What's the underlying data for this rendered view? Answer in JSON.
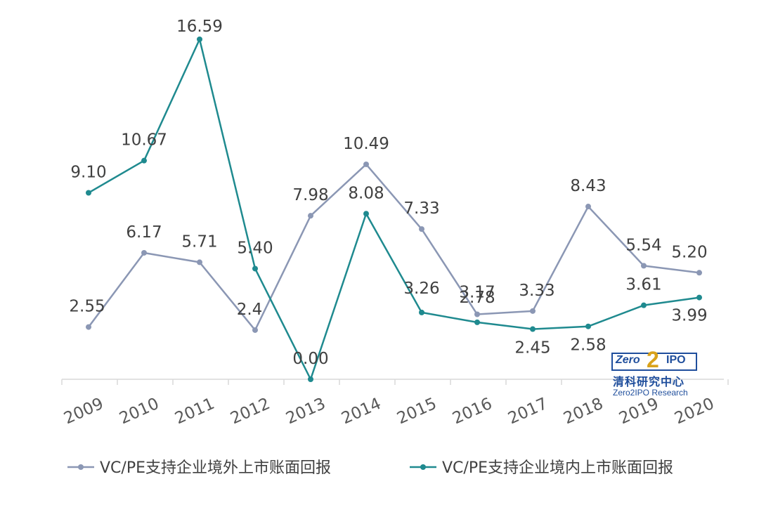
{
  "chart_data": {
    "type": "line",
    "x": [
      "2009",
      "2010",
      "2011",
      "2012",
      "2013",
      "2014",
      "2015",
      "2016",
      "2017",
      "2018",
      "2019",
      "2020"
    ],
    "series": [
      {
        "name": "VC/PE支持企业境外上市账面回报",
        "color": "#8b97b4",
        "values": [
          2.55,
          6.17,
          5.71,
          2.4,
          7.98,
          10.49,
          7.33,
          3.17,
          3.33,
          8.43,
          5.54,
          5.2
        ],
        "labels": [
          "2.55",
          "6.17",
          "5.71",
          "2.4",
          "7.98",
          "10.49",
          "7.33",
          "3.17",
          "3.33",
          "8.43",
          "5.54",
          "5.20"
        ]
      },
      {
        "name": "VC/PE支持企业境内上市账面回报",
        "color": "#1f8a8f",
        "values": [
          9.1,
          10.67,
          16.59,
          5.4,
          0.0,
          8.08,
          3.26,
          2.78,
          2.45,
          2.58,
          3.61,
          3.99
        ],
        "labels": [
          "9.10",
          "10.67",
          "16.59",
          "5.40",
          "0.00",
          "8.08",
          "3.26",
          "2.78",
          "2.45",
          "2.58",
          "3.61",
          "3.99"
        ]
      }
    ],
    "ylim": [
      0,
      17
    ],
    "grid": false,
    "legend": "bottom"
  },
  "logo": {
    "zero": "Zero",
    "two": "2",
    "ipo": "IPO",
    "cn": "清科研究中心",
    "en": "Zero2IPO Research"
  }
}
